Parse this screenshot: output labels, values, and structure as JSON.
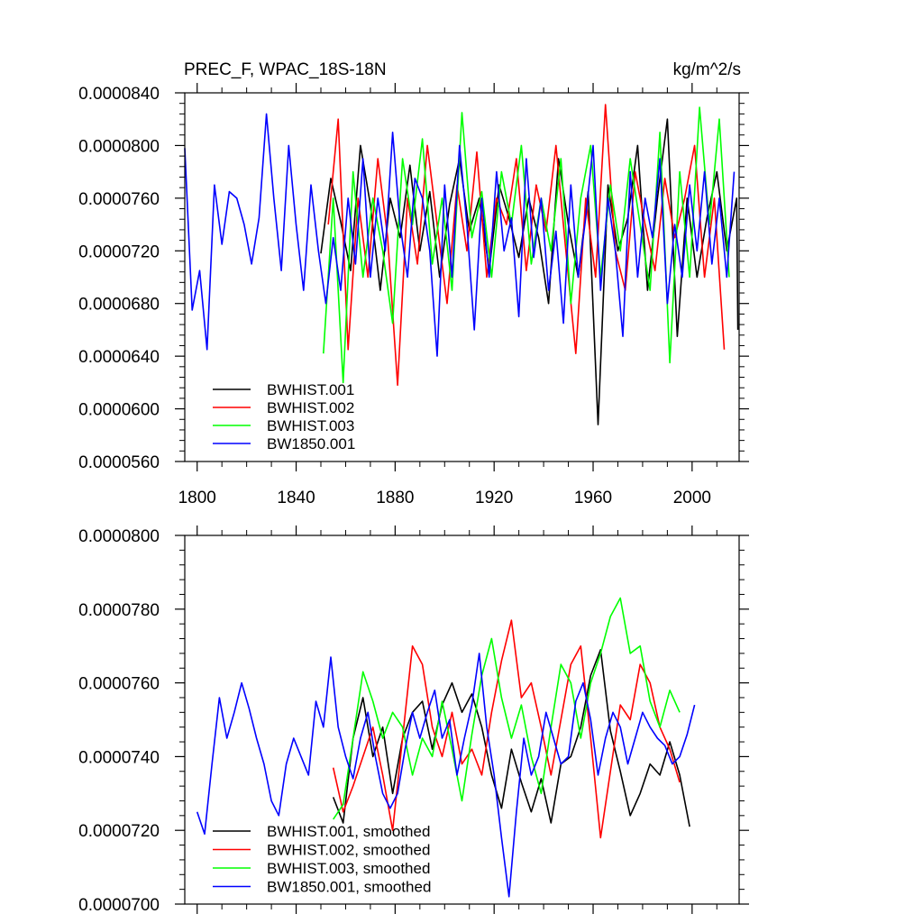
{
  "chart_data": [
    {
      "type": "line",
      "title_left": "PREC_F, WPAC_18S-18N",
      "title_right": "kg/m^2/s",
      "xlabel": "",
      "ylabel": "",
      "xlim": [
        1795,
        2019
      ],
      "ylim": [
        5.6e-05,
        8.4e-05
      ],
      "x_ticks": [
        1800,
        1840,
        1880,
        1920,
        1960,
        2000
      ],
      "x_tick_labels": [
        "1800",
        "1840",
        "1880",
        "1920",
        "1960",
        "2000"
      ],
      "y_ticks": [
        5.6e-05,
        6e-05,
        6.4e-05,
        6.8e-05,
        7.2e-05,
        7.6e-05,
        8e-05,
        8.4e-05
      ],
      "y_tick_labels": [
        "0.0000560",
        "0.0000600",
        "0.0000640",
        "0.0000680",
        "0.0000720",
        "0.0000760",
        "0.0000800",
        "0.0000840"
      ],
      "legend_position": "bottom-left",
      "series": [
        {
          "name": "BWHIST.001",
          "color": "#000000",
          "x_start": 1850,
          "x_step": 4,
          "values": [
            7.18e-05,
            7.75e-05,
            7.42e-05,
            7.05e-05,
            8e-05,
            7.55e-05,
            6.9e-05,
            7.6e-05,
            7.3e-05,
            7.85e-05,
            7.2e-05,
            7.65e-05,
            7e-05,
            7.55e-05,
            7.9e-05,
            7.35e-05,
            7.6e-05,
            7.05e-05,
            7.7e-05,
            7.45e-05,
            7.15e-05,
            7.6e-05,
            7.3e-05,
            6.8e-05,
            7.9e-05,
            7.4e-05,
            7e-05,
            7.65e-05,
            5.88e-05,
            7.7e-05,
            7.2e-05,
            7.45e-05,
            8e-05,
            6.9e-05,
            7.6e-05,
            8.2e-05,
            6.55e-05,
            7.6e-05,
            7e-05,
            7.45e-05,
            7.8e-05,
            7.2e-05,
            7.6e-05,
            6.6e-05
          ]
        },
        {
          "name": "BWHIST.002",
          "color": "#ff0000",
          "x_start": 1853,
          "x_step": 4,
          "values": [
            7.4e-05,
            8.2e-05,
            6.45e-05,
            7.6e-05,
            7e-05,
            7.9e-05,
            7.3e-05,
            6.18e-05,
            7.6e-05,
            7.1e-05,
            8e-05,
            7.4e-05,
            6.8e-05,
            7.7e-05,
            7.2e-05,
            7.95e-05,
            7e-05,
            7.6e-05,
            7.4e-05,
            7.9e-05,
            7.05e-05,
            7.7e-05,
            7.35e-05,
            8e-05,
            7.2e-05,
            6.42e-05,
            7.6e-05,
            7e-05,
            8.31e-05,
            7.2e-05,
            6.9e-05,
            7.8e-05,
            7.4e-05,
            7.05e-05,
            7.75e-05,
            7.3e-05,
            7.6e-05,
            8e-05,
            7e-05,
            7.6e-05,
            6.45e-05
          ]
        },
        {
          "name": "BWHIST.003",
          "color": "#00ff00",
          "x_start": 1851,
          "x_step": 4,
          "values": [
            6.42e-05,
            7.6e-05,
            6.2e-05,
            7.8e-05,
            7e-05,
            7.6e-05,
            7.2e-05,
            6.65e-05,
            7.9e-05,
            7.4e-05,
            8.05e-05,
            7.1e-05,
            7.6e-05,
            6.9e-05,
            8.25e-05,
            7.3e-05,
            7.65e-05,
            7e-05,
            7.8e-05,
            7.4e-05,
            8e-05,
            7.1e-05,
            7.6e-05,
            7.2e-05,
            7.9e-05,
            6.8e-05,
            7.6e-05,
            8e-05,
            7e-05,
            7.7e-05,
            7.2e-05,
            7.9e-05,
            7.4e-05,
            6.9e-05,
            8.1e-05,
            6.35e-05,
            7.8e-05,
            7e-05,
            8.29e-05,
            7.4e-05,
            8.2e-05,
            7e-05
          ]
        },
        {
          "name": "BW1850.001",
          "color": "#0000ff",
          "x_start": 1795,
          "x_step": 3,
          "values": [
            7.98e-05,
            6.75e-05,
            7.05e-05,
            6.45e-05,
            7.7e-05,
            7.25e-05,
            7.65e-05,
            7.6e-05,
            7.4e-05,
            7.1e-05,
            7.45e-05,
            8.24e-05,
            7.6e-05,
            7.05e-05,
            8e-05,
            7.4e-05,
            6.9e-05,
            7.7e-05,
            7.2e-05,
            6.8e-05,
            7.3e-05,
            6.9e-05,
            7.6e-05,
            7.1e-05,
            7.9e-05,
            7e-05,
            7.6e-05,
            7.2e-05,
            8.1e-05,
            7.4e-05,
            7e-05,
            7.75e-05,
            7.6e-05,
            7.2e-05,
            6.4e-05,
            7.7e-05,
            7e-05,
            8e-05,
            7.4e-05,
            6.6e-05,
            7.6e-05,
            7e-05,
            7.8e-05,
            7.2e-05,
            7.45e-05,
            6.7e-05,
            7.9e-05,
            7.15e-05,
            7.6e-05,
            6.9e-05,
            7.35e-05,
            6.65e-05,
            7.7e-05,
            7e-05,
            7.45e-05,
            8e-05,
            6.9e-05,
            7.6e-05,
            7.2e-05,
            6.55e-05,
            7.8e-05,
            7e-05,
            7.6e-05,
            7.3e-05,
            7.9e-05,
            6.8e-05,
            7.4e-05,
            7e-05,
            7.7e-05,
            7.2e-05,
            7.8e-05,
            7.1e-05,
            7.6e-05,
            7e-05,
            7.8e-05
          ]
        }
      ]
    },
    {
      "type": "line",
      "xlabel": "",
      "ylabel": "",
      "xlim": [
        1795,
        2019
      ],
      "ylim": [
        7e-05,
        8e-05
      ],
      "x_ticks": [
        1800,
        1840,
        1880,
        1920,
        1960,
        2000
      ],
      "y_ticks": [
        7e-05,
        7.2e-05,
        7.4e-05,
        7.6e-05,
        7.8e-05,
        8e-05
      ],
      "y_tick_labels": [
        "0.0000700",
        "0.0000720",
        "0.0000740",
        "0.0000760",
        "0.0000780",
        "0.0000800"
      ],
      "legend_position": "bottom-left",
      "series": [
        {
          "name": "BWHIST.001, smoothed",
          "color": "#000000",
          "x_start": 1855,
          "x_step": 4,
          "values": [
            7.29e-05,
            7.22e-05,
            7.45e-05,
            7.56e-05,
            7.4e-05,
            7.48e-05,
            7.3e-05,
            7.45e-05,
            7.52e-05,
            7.55e-05,
            7.42e-05,
            7.54e-05,
            7.6e-05,
            7.52e-05,
            7.57e-05,
            7.48e-05,
            7.35e-05,
            7.26e-05,
            7.42e-05,
            7.33e-05,
            7.25e-05,
            7.34e-05,
            7.22e-05,
            7.38e-05,
            7.4e-05,
            7.48e-05,
            7.62e-05,
            7.69e-05,
            7.47e-05,
            7.36e-05,
            7.24e-05,
            7.3e-05,
            7.38e-05,
            7.35e-05,
            7.44e-05,
            7.35e-05,
            7.21e-05
          ]
        },
        {
          "name": "BWHIST.002, smoothed",
          "color": "#ff0000",
          "x_start": 1855,
          "x_step": 4,
          "values": [
            7.37e-05,
            7.25e-05,
            7.32e-05,
            7.4e-05,
            7.48e-05,
            7.35e-05,
            7.2e-05,
            7.45e-05,
            7.7e-05,
            7.65e-05,
            7.48e-05,
            7.4e-05,
            7.52e-05,
            7.38e-05,
            7.42e-05,
            7.35e-05,
            7.52e-05,
            7.66e-05,
            7.77e-05,
            7.56e-05,
            7.6e-05,
            7.48e-05,
            7.35e-05,
            7.5e-05,
            7.65e-05,
            7.7e-05,
            7.45e-05,
            7.18e-05,
            7.36e-05,
            7.54e-05,
            7.5e-05,
            7.65e-05,
            7.6e-05,
            7.48e-05,
            7.42e-05,
            7.33e-05
          ]
        },
        {
          "name": "BWHIST.003, smoothed",
          "color": "#00ff00",
          "x_start": 1855,
          "x_step": 4,
          "values": [
            7.23e-05,
            7.27e-05,
            7.45e-05,
            7.63e-05,
            7.55e-05,
            7.45e-05,
            7.52e-05,
            7.48e-05,
            7.35e-05,
            7.45e-05,
            7.4e-05,
            7.55e-05,
            7.42e-05,
            7.28e-05,
            7.46e-05,
            7.62e-05,
            7.72e-05,
            7.56e-05,
            7.45e-05,
            7.54e-05,
            7.4e-05,
            7.3e-05,
            7.48e-05,
            7.65e-05,
            7.6e-05,
            7.45e-05,
            7.6e-05,
            7.68e-05,
            7.78e-05,
            7.83e-05,
            7.68e-05,
            7.7e-05,
            7.55e-05,
            7.48e-05,
            7.58e-05,
            7.52e-05
          ]
        },
        {
          "name": "BW1850.001, smoothed",
          "color": "#0000ff",
          "x_start": 1800,
          "x_step": 3,
          "values": [
            7.25e-05,
            7.19e-05,
            7.38e-05,
            7.56e-05,
            7.45e-05,
            7.52e-05,
            7.6e-05,
            7.53e-05,
            7.45e-05,
            7.38e-05,
            7.28e-05,
            7.24e-05,
            7.38e-05,
            7.45e-05,
            7.4e-05,
            7.35e-05,
            7.55e-05,
            7.48e-05,
            7.67e-05,
            7.48e-05,
            7.4e-05,
            7.34e-05,
            7.45e-05,
            7.52e-05,
            7.4e-05,
            7.3e-05,
            7.26e-05,
            7.3e-05,
            7.42e-05,
            7.52e-05,
            7.45e-05,
            7.52e-05,
            7.58e-05,
            7.45e-05,
            7.5e-05,
            7.35e-05,
            7.45e-05,
            7.54e-05,
            7.68e-05,
            7.48e-05,
            7.35e-05,
            7.18e-05,
            7.02e-05,
            7.25e-05,
            7.45e-05,
            7.35e-05,
            7.4e-05,
            7.52e-05,
            7.45e-05,
            7.38e-05,
            7.4e-05,
            7.55e-05,
            7.6e-05,
            7.5e-05,
            7.35e-05,
            7.45e-05,
            7.52e-05,
            7.48e-05,
            7.38e-05,
            7.45e-05,
            7.52e-05,
            7.48e-05,
            7.45e-05,
            7.43e-05,
            7.38e-05,
            7.4e-05,
            7.46e-05,
            7.54e-05
          ]
        }
      ]
    }
  ]
}
